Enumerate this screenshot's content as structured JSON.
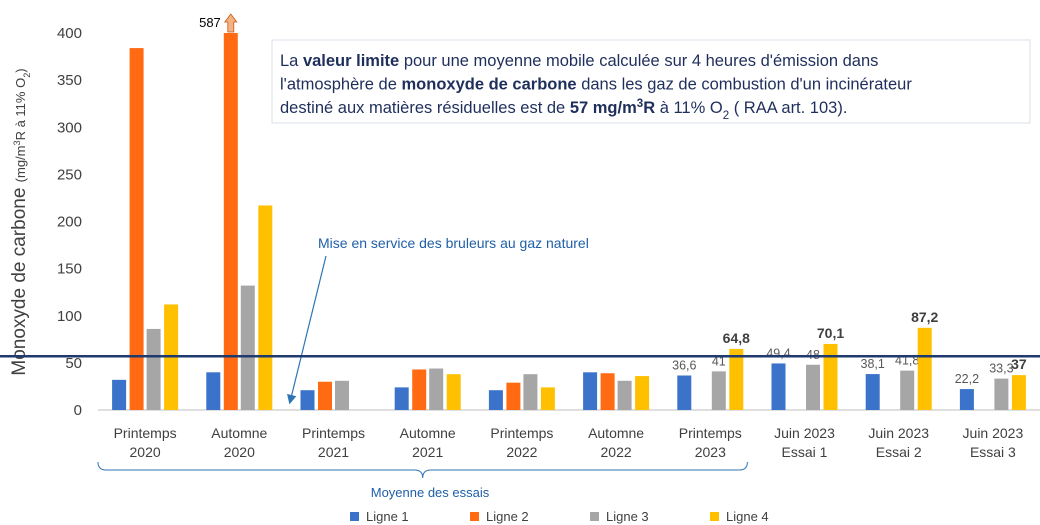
{
  "chart_data": {
    "type": "bar",
    "y_label": [
      {
        "text": "Monoxyde de carbone "
      },
      {
        "text": "(mg/m",
        "small": true
      },
      {
        "text": "3",
        "small": true,
        "script": "super"
      },
      {
        "text": "R à 11% O",
        "small": true
      },
      {
        "text": "2",
        "small": true,
        "script": "sub"
      },
      {
        "text": ")",
        "small": true
      }
    ],
    "categories": [
      [
        "Printemps",
        "2020"
      ],
      [
        "Automne",
        "2020"
      ],
      [
        "Printemps",
        "2021"
      ],
      [
        "Automne",
        "2021"
      ],
      [
        "Printemps",
        "2022"
      ],
      [
        "Automne",
        "2022"
      ],
      [
        "Printemps",
        "2023"
      ],
      [
        "Juin 2023",
        "Essai 1"
      ],
      [
        "Juin 2023",
        "Essai 2"
      ],
      [
        "Juin 2023",
        "Essai 3"
      ]
    ],
    "series": [
      {
        "name": "Ligne 1",
        "color": "#3a73c9",
        "values": [
          32,
          40,
          21,
          24,
          21,
          40,
          36.6,
          49.4,
          38.1,
          22.2
        ],
        "value_labels": [
          null,
          null,
          null,
          null,
          null,
          null,
          "36,6",
          "49,4",
          "38,1",
          "22,2"
        ]
      },
      {
        "name": "Ligne 2",
        "color": "#ff6a13",
        "values": [
          384,
          587,
          30,
          43,
          29,
          39,
          null,
          null,
          null,
          null
        ],
        "value_labels": [
          null,
          "587",
          null,
          null,
          null,
          null,
          null,
          null,
          null,
          null
        ]
      },
      {
        "name": "Ligne 3",
        "color": "#a6a6a6",
        "values": [
          86,
          132,
          31,
          44,
          38,
          31,
          41,
          48,
          41.8,
          33.3
        ],
        "value_labels": [
          null,
          null,
          null,
          null,
          null,
          null,
          "41",
          "48",
          "41,8",
          "33,3"
        ]
      },
      {
        "name": "Ligne 4",
        "color": "#ffc000",
        "values": [
          112,
          217,
          null,
          38,
          24,
          36,
          64.8,
          70.1,
          87.2,
          37
        ],
        "value_labels": [
          null,
          null,
          null,
          null,
          null,
          null,
          "64,8",
          "70,1",
          "87,2",
          "37"
        ]
      }
    ],
    "ylim": [
      0,
      400
    ],
    "yticks": [
      0,
      50,
      100,
      150,
      200,
      250,
      300,
      350,
      400
    ],
    "grid": false,
    "legend": "bottom",
    "limit_line": {
      "value": 57,
      "color": "#1f3a6e"
    },
    "annotation_box": [
      [
        {
          "text": "La "
        },
        {
          "text": "valeur limite",
          "bold": true
        },
        {
          "text": " pour une moyenne mobile calculée sur 4 heures d'émission dans"
        }
      ],
      [
        {
          "text": "l'atmosphère de "
        },
        {
          "text": "monoxyde de carbone",
          "bold": true
        },
        {
          "text": " dans les gaz de combustion d'un incinérateur"
        }
      ],
      [
        {
          "text": "destiné aux matières résiduelles est de "
        },
        {
          "text": "57 mg/m",
          "bold": true
        },
        {
          "text": "3",
          "bold": true,
          "script": "super"
        },
        {
          "text": "R",
          "bold": true
        },
        {
          "text": " à 11% O"
        },
        {
          "text": "2",
          "script": "sub"
        },
        {
          "text": " ( RAA art. 103)."
        }
      ]
    ],
    "annotation_arrow": "Mise en service des bruleurs au gaz naturel",
    "bracket_label": "Moyenne des essais"
  }
}
